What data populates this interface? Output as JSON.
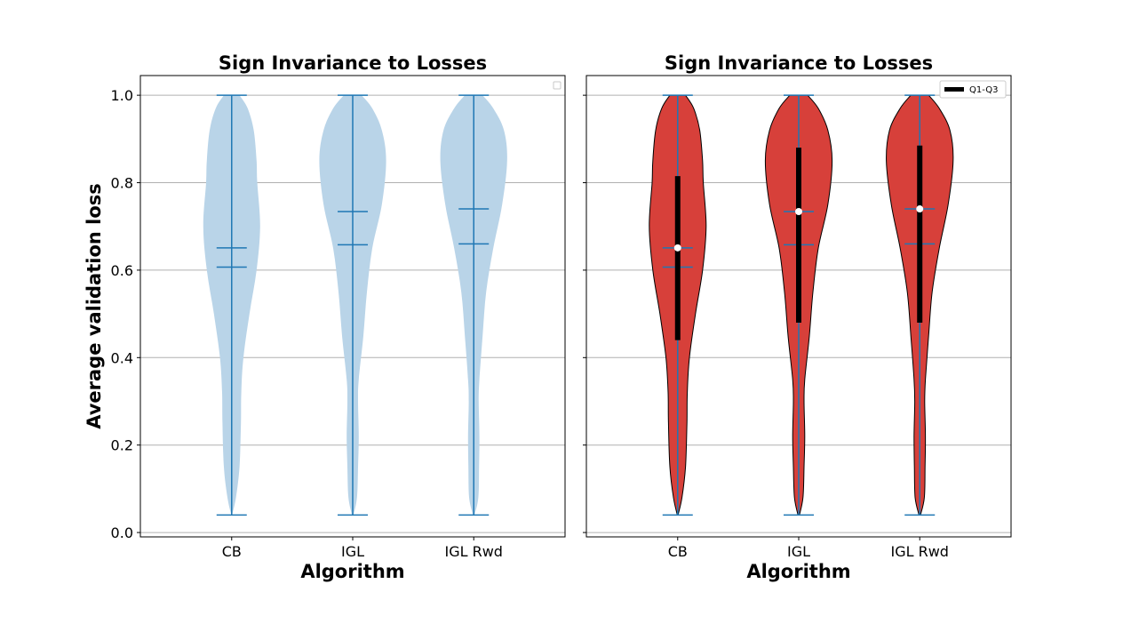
{
  "chart_data": [
    {
      "type": "violin",
      "title": "Sign Invariance to Losses",
      "xlabel": "Algorithm",
      "ylabel": "Average validation loss",
      "categories": [
        "CB",
        "IGL",
        "IGL Rwd"
      ],
      "ylim": [
        -0.01,
        1.045
      ],
      "yticks": [
        0.0,
        0.2,
        0.4,
        0.6,
        0.8,
        1.0
      ],
      "grid": "y",
      "violin_color": "#b9d4e8",
      "line_color": "#1f77b4",
      "legend": {
        "placement": "top-right",
        "entries": []
      },
      "series": [
        {
          "category": "CB",
          "min": 0.04,
          "max": 1.0,
          "mean": 0.651,
          "median": 0.607,
          "density": [
            [
              0.04,
              0.01
            ],
            [
              0.08,
              0.12
            ],
            [
              0.15,
              0.22
            ],
            [
              0.25,
              0.26
            ],
            [
              0.32,
              0.27
            ],
            [
              0.4,
              0.33
            ],
            [
              0.5,
              0.5
            ],
            [
              0.6,
              0.7
            ],
            [
              0.7,
              0.8
            ],
            [
              0.8,
              0.72
            ],
            [
              0.85,
              0.7
            ],
            [
              0.92,
              0.62
            ],
            [
              0.97,
              0.45
            ],
            [
              1.0,
              0.22
            ]
          ]
        },
        {
          "category": "IGL",
          "min": 0.04,
          "max": 1.0,
          "mean": 0.734,
          "median": 0.658,
          "density": [
            [
              0.04,
              0.02
            ],
            [
              0.08,
              0.12
            ],
            [
              0.15,
              0.15
            ],
            [
              0.22,
              0.17
            ],
            [
              0.3,
              0.15
            ],
            [
              0.35,
              0.17
            ],
            [
              0.45,
              0.3
            ],
            [
              0.55,
              0.4
            ],
            [
              0.65,
              0.55
            ],
            [
              0.75,
              0.82
            ],
            [
              0.85,
              0.94
            ],
            [
              0.92,
              0.82
            ],
            [
              0.97,
              0.55
            ],
            [
              1.0,
              0.25
            ]
          ]
        },
        {
          "category": "IGL Rwd",
          "min": 0.04,
          "max": 1.0,
          "mean": 0.74,
          "median": 0.66,
          "density": [
            [
              0.04,
              0.02
            ],
            [
              0.08,
              0.13
            ],
            [
              0.15,
              0.15
            ],
            [
              0.22,
              0.16
            ],
            [
              0.3,
              0.14
            ],
            [
              0.35,
              0.16
            ],
            [
              0.45,
              0.25
            ],
            [
              0.55,
              0.35
            ],
            [
              0.65,
              0.55
            ],
            [
              0.75,
              0.8
            ],
            [
              0.85,
              0.94
            ],
            [
              0.92,
              0.85
            ],
            [
              0.97,
              0.55
            ],
            [
              1.0,
              0.25
            ]
          ]
        }
      ]
    },
    {
      "type": "violin",
      "title": "Sign Invariance to Losses",
      "xlabel": "Algorithm",
      "ylabel": "",
      "categories": [
        "CB",
        "IGL",
        "IGL Rwd"
      ],
      "ylim": [
        -0.01,
        1.045
      ],
      "yticks": [
        0.0,
        0.2,
        0.4,
        0.6,
        0.8,
        1.0
      ],
      "grid": "y",
      "violin_color": "#d7403a",
      "line_color": "#1f77b4",
      "legend": {
        "placement": "top-right",
        "entries": [
          "Q1-Q3"
        ]
      },
      "series": [
        {
          "category": "CB",
          "min": 0.04,
          "max": 1.0,
          "mean": 0.651,
          "median": 0.607,
          "q1": 0.44,
          "q3": 0.815,
          "marker": 0.651,
          "density": [
            [
              0.04,
              0.01
            ],
            [
              0.08,
              0.12
            ],
            [
              0.15,
              0.22
            ],
            [
              0.25,
              0.26
            ],
            [
              0.32,
              0.27
            ],
            [
              0.4,
              0.33
            ],
            [
              0.5,
              0.5
            ],
            [
              0.6,
              0.7
            ],
            [
              0.7,
              0.8
            ],
            [
              0.8,
              0.72
            ],
            [
              0.85,
              0.7
            ],
            [
              0.92,
              0.62
            ],
            [
              0.97,
              0.45
            ],
            [
              1.0,
              0.22
            ]
          ]
        },
        {
          "category": "IGL",
          "min": 0.04,
          "max": 1.0,
          "mean": 0.734,
          "median": 0.658,
          "q1": 0.48,
          "q3": 0.88,
          "marker": 0.734,
          "density": [
            [
              0.04,
              0.02
            ],
            [
              0.08,
              0.12
            ],
            [
              0.15,
              0.15
            ],
            [
              0.22,
              0.17
            ],
            [
              0.3,
              0.15
            ],
            [
              0.35,
              0.17
            ],
            [
              0.45,
              0.3
            ],
            [
              0.55,
              0.4
            ],
            [
              0.65,
              0.55
            ],
            [
              0.75,
              0.82
            ],
            [
              0.85,
              0.94
            ],
            [
              0.92,
              0.82
            ],
            [
              0.97,
              0.55
            ],
            [
              1.0,
              0.25
            ]
          ]
        },
        {
          "category": "IGL Rwd",
          "min": 0.04,
          "max": 1.0,
          "mean": 0.74,
          "median": 0.66,
          "q1": 0.48,
          "q3": 0.885,
          "marker": 0.74,
          "density": [
            [
              0.04,
              0.02
            ],
            [
              0.08,
              0.13
            ],
            [
              0.15,
              0.15
            ],
            [
              0.22,
              0.16
            ],
            [
              0.3,
              0.14
            ],
            [
              0.35,
              0.16
            ],
            [
              0.45,
              0.25
            ],
            [
              0.55,
              0.35
            ],
            [
              0.65,
              0.55
            ],
            [
              0.75,
              0.8
            ],
            [
              0.85,
              0.94
            ],
            [
              0.92,
              0.85
            ],
            [
              0.97,
              0.55
            ],
            [
              1.0,
              0.25
            ]
          ]
        }
      ]
    }
  ]
}
